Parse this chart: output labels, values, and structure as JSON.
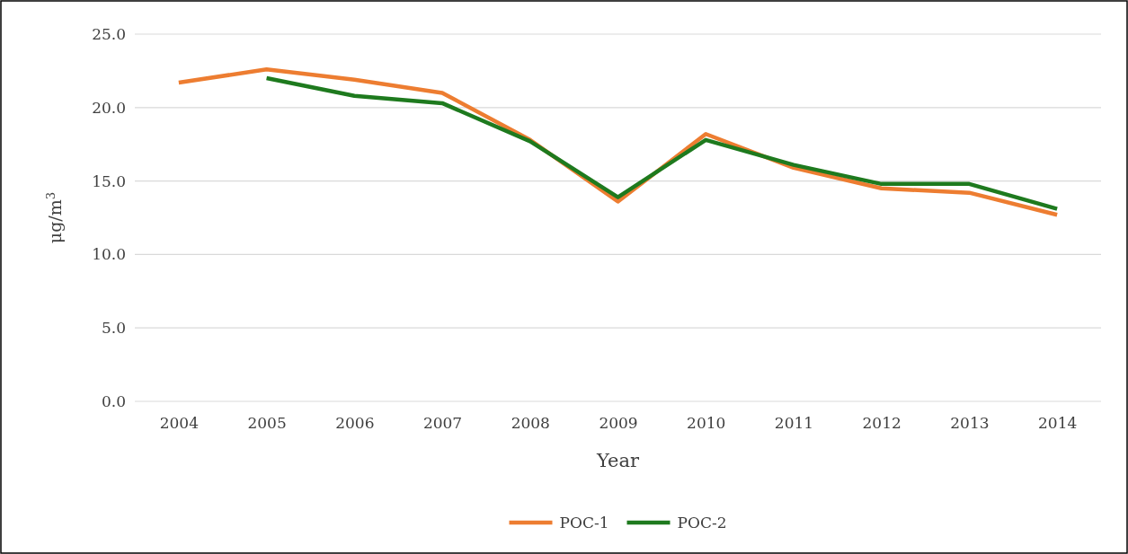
{
  "chart_data": {
    "type": "line",
    "xlabel": "Year",
    "ylabel": "μg/m$^{3}$",
    "categories": [
      "2004",
      "2005",
      "2006",
      "2007",
      "2008",
      "2009",
      "2010",
      "2011",
      "2012",
      "2013",
      "2014"
    ],
    "series": [
      {
        "name": "POC-1",
        "color": "#ed7d31",
        "values": [
          21.7,
          22.6,
          21.9,
          21.0,
          17.8,
          13.6,
          18.2,
          15.9,
          14.5,
          14.2,
          12.7
        ]
      },
      {
        "name": "POC-2",
        "color": "#1e7a1e",
        "values": [
          null,
          22.0,
          20.8,
          20.3,
          17.7,
          13.9,
          17.8,
          16.1,
          14.8,
          14.8,
          13.1
        ]
      }
    ],
    "ylim": [
      0,
      25
    ],
    "yticks": [
      {
        "value": 0,
        "label": "0.0"
      },
      {
        "value": 5,
        "label": "5.0"
      },
      {
        "value": 10,
        "label": "10.0"
      },
      {
        "value": 15,
        "label": "15.0"
      },
      {
        "value": 20,
        "label": "20.0"
      },
      {
        "value": 25,
        "label": "25.0"
      }
    ],
    "grid": "y",
    "legend": "bottom",
    "marker": "none",
    "line_style": "solid"
  }
}
